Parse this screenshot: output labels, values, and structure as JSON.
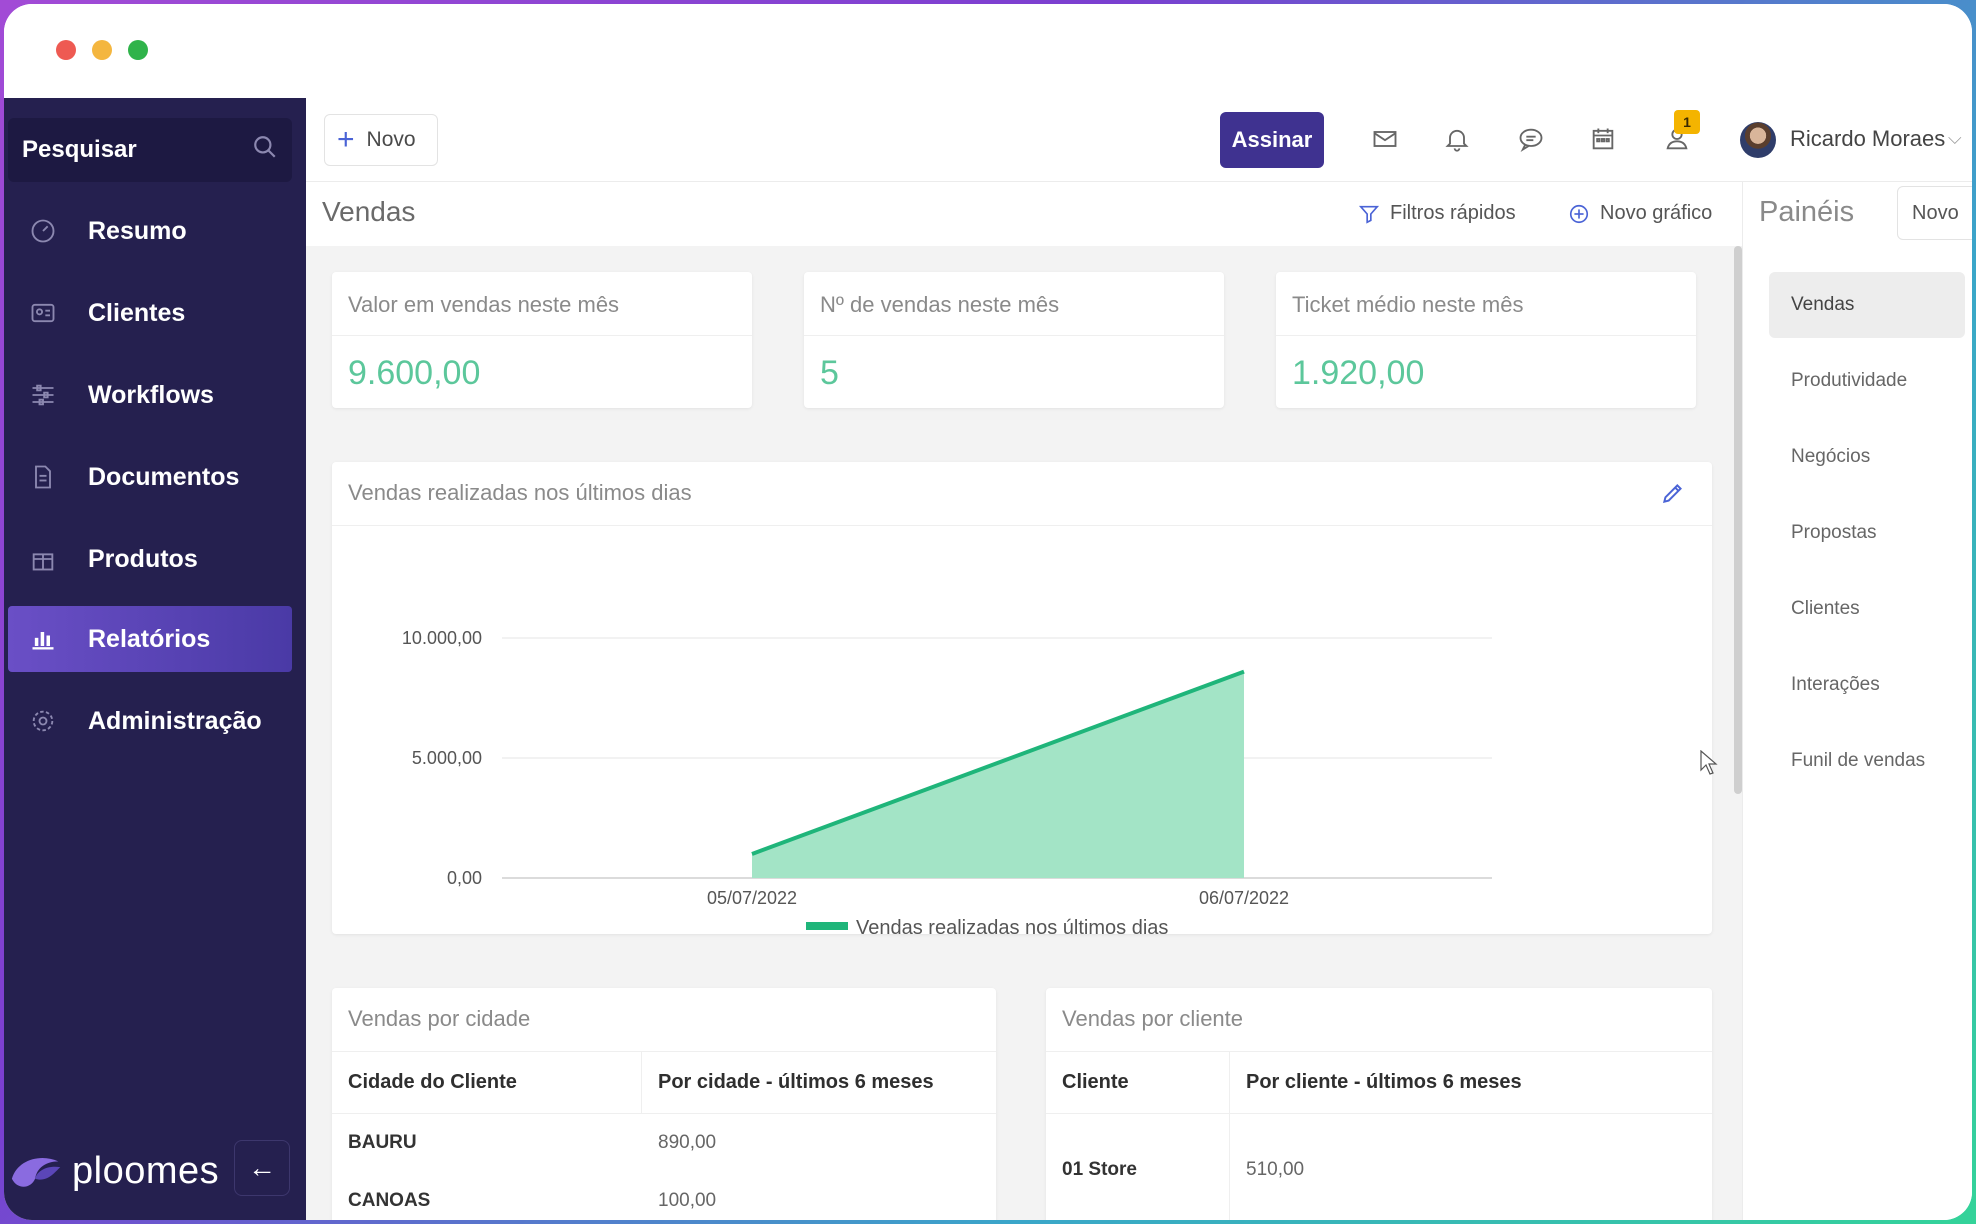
{
  "sidebar": {
    "search_label": "Pesquisar",
    "items": [
      {
        "label": "Resumo",
        "icon": "gauge-icon"
      },
      {
        "label": "Clientes",
        "icon": "contact-card-icon"
      },
      {
        "label": "Workflows",
        "icon": "sliders-icon"
      },
      {
        "label": "Documentos",
        "icon": "document-icon"
      },
      {
        "label": "Produtos",
        "icon": "gift-box-icon"
      },
      {
        "label": "Relatórios",
        "icon": "bar-chart-icon",
        "active": true
      },
      {
        "label": "Administração",
        "icon": "gear-icon"
      }
    ],
    "brand": "ploomes",
    "collapse_icon": "←"
  },
  "topbar": {
    "new_label": "Novo",
    "new_icon": "+",
    "assinar_label": "Assinar",
    "icons": [
      "mail-icon",
      "bell-icon",
      "chat-icon",
      "calendar-icon",
      "user-notification-icon"
    ],
    "badge_count": "1",
    "user_name": "Ricardo Moraes",
    "chevron": "⌵"
  },
  "page": {
    "title": "Vendas",
    "filters_label": "Filtros rápidos",
    "new_chart_label": "Novo gráfico"
  },
  "kpis": [
    {
      "title": "Valor em vendas neste mês",
      "value": "9.600,00"
    },
    {
      "title": "Nº de vendas neste mês",
      "value": "5"
    },
    {
      "title": "Ticket médio neste mês",
      "value": "1.920,00"
    }
  ],
  "chart_card": {
    "title": "Vendas realizadas nos últimos dias"
  },
  "chart_data": {
    "type": "area",
    "title": "Vendas realizadas nos últimos dias",
    "x": [
      "05/07/2022",
      "06/07/2022"
    ],
    "series": [
      {
        "name": "Vendas realizadas nos últimos dias",
        "values": [
          1000,
          8600
        ],
        "color": "#1fb57a"
      }
    ],
    "yticks": [
      "10.000,00",
      "5.000,00",
      "0,00"
    ],
    "ylim": [
      0,
      10000
    ],
    "grid": true,
    "legend": "bottom"
  },
  "table_city": {
    "title": "Vendas por cidade",
    "headers": [
      "Cidade do Cliente",
      "Por cidade - últimos 6 meses"
    ],
    "rows": [
      [
        "BAURU",
        "890,00"
      ],
      [
        "CANOAS",
        "100,00"
      ]
    ]
  },
  "table_client": {
    "title": "Vendas por cliente",
    "headers": [
      "Cliente",
      "Por cliente - últimos 6 meses"
    ],
    "rows": [
      [
        "01 Store",
        "510,00"
      ]
    ]
  },
  "panels": {
    "title": "Painéis",
    "new_label": "Novo",
    "items": [
      "Vendas",
      "Produtividade",
      "Negócios",
      "Propostas",
      "Clientes",
      "Interações",
      "Funil de vendas"
    ]
  },
  "colors": {
    "sidebar_bg": "#25204f",
    "accent": "#3f3290",
    "kpi_value": "#5cc79b",
    "chart_fill": "#a3e4c6",
    "chart_line": "#1fb57a"
  }
}
